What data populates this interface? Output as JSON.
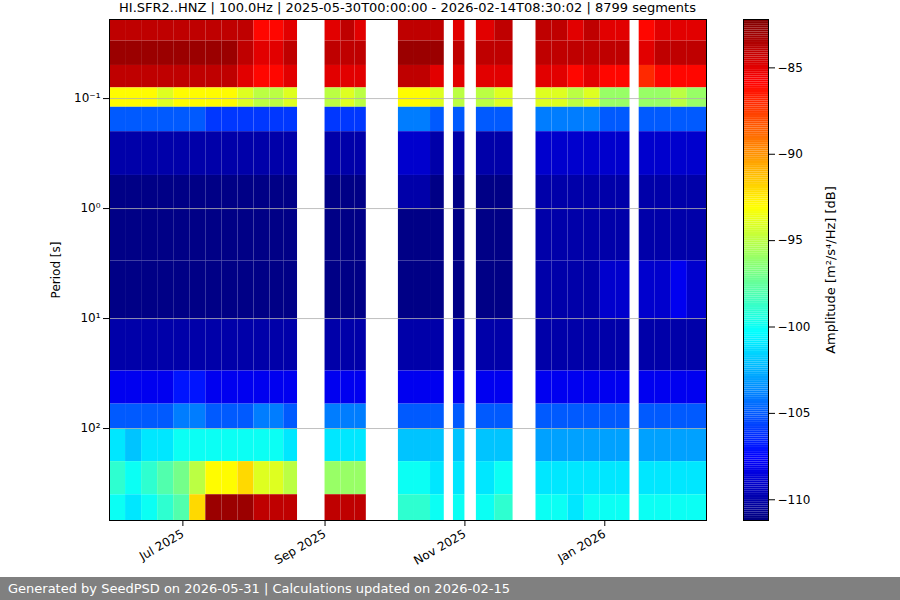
{
  "chart_data": {
    "type": "heatmap",
    "title": "HI.SFR2..HNZ | 100.0Hz | 2025-05-30T00:00:00 - 2026-02-14T08:30:02 | 8799 segments",
    "caption": "Generated by SeedPSD on 2026-05-31 | Calculations updated on 2026-02-15",
    "y_label": "Period [s]",
    "log": "y",
    "grid": "y",
    "xlim": [
      "2025-05-30",
      "2026-02-14T08:30:02"
    ],
    "xticks": [
      {
        "value": "2025-07-01",
        "label": "Jul 2025"
      },
      {
        "value": "2025-09-01",
        "label": "Sep 2025"
      },
      {
        "value": "2025-11-01",
        "label": "Nov 2025"
      },
      {
        "value": "2026-01-01",
        "label": "Jan 2026"
      }
    ],
    "ylim": [
      686,
      0.0191
    ],
    "yticks": [
      {
        "value": 0.1,
        "label": "10⁻¹"
      },
      {
        "value": 1,
        "label": "10⁰"
      },
      {
        "value": 10,
        "label": "10¹"
      },
      {
        "value": 100,
        "label": "10²"
      }
    ],
    "time_bins": [
      "2025-05-30",
      "2025-06-06",
      "2025-06-13",
      "2025-06-20",
      "2025-06-27",
      "2025-07-04",
      "2025-07-11",
      "2025-07-18",
      "2025-07-25",
      "2025-08-01",
      "2025-08-08",
      "2025-08-14",
      "2025-08-20",
      "2025-09-01",
      "2025-09-08",
      "2025-09-14",
      "2025-09-19",
      "2025-10-03",
      "2025-10-10",
      "2025-10-17",
      "2025-10-23",
      "2025-10-27",
      "2025-11-01",
      "2025-11-06",
      "2025-11-14",
      "2025-11-22",
      "2025-12-02",
      "2025-12-09",
      "2025-12-16",
      "2025-12-23",
      "2025-12-30",
      "2026-01-06",
      "2026-01-12",
      "2026-01-16",
      "2026-01-23",
      "2026-01-30",
      "2026-02-06",
      "2026-02-14T08:30:02"
    ],
    "period_bins": [
      0.0191,
      0.03,
      0.05,
      0.08,
      0.12,
      0.2,
      0.5,
      1,
      3,
      10,
      30,
      60,
      100,
      200,
      400,
      686
    ],
    "cells": [
      [
        -84,
        -83,
        -84,
        -93,
        -105,
        -110,
        -111,
        -111,
        -111,
        -110,
        -108,
        -105,
        -101,
        -99,
        -100
      ],
      [
        -84,
        -83,
        -84,
        -93,
        -105,
        -110,
        -111,
        -111,
        -111,
        -110,
        -108,
        -105,
        -102,
        -100,
        -101
      ],
      [
        -84,
        -83,
        -84,
        -93,
        -105,
        -110,
        -111,
        -111,
        -111,
        -110,
        -108,
        -105,
        -101,
        -99,
        -100
      ],
      [
        -84,
        -83,
        -84,
        -94,
        -105,
        -110,
        -111,
        -111,
        -111,
        -110,
        -108,
        -105,
        -101,
        -98,
        -99
      ],
      [
        -84,
        -83,
        -84,
        -93,
        -105,
        -110,
        -111,
        -111,
        -111,
        -110,
        -107,
        -104,
        -100,
        -97,
        -98
      ],
      [
        -84,
        -83,
        -84,
        -93,
        -105,
        -110,
        -111,
        -111,
        -111,
        -110,
        -107,
        -104,
        -100,
        -95,
        -92
      ],
      [
        -84,
        -83,
        -84,
        -93,
        -106,
        -110,
        -111,
        -111,
        -111,
        -110,
        -108,
        -105,
        -100,
        -93,
        -83
      ],
      [
        -84,
        -83,
        -84,
        -93,
        -106,
        -110,
        -111,
        -111,
        -111,
        -110,
        -108,
        -105,
        -100,
        -93,
        -83
      ],
      [
        -84,
        -84,
        -85,
        -94,
        -106,
        -110,
        -111,
        -111,
        -111,
        -110,
        -108,
        -105,
        -100,
        -92,
        -83
      ],
      [
        -86,
        -85,
        -86,
        -95,
        -106,
        -110,
        -111,
        -111,
        -111,
        -110,
        -108,
        -104,
        -100,
        -94,
        -84
      ],
      [
        -86,
        -85,
        -86,
        -95,
        -106,
        -110,
        -111,
        -111,
        -111,
        -110,
        -108,
        -104,
        -100,
        -94,
        -84
      ],
      [
        -85,
        -84,
        -85,
        -94,
        -106,
        -110,
        -111,
        -111,
        -111,
        -110,
        -108,
        -105,
        -101,
        -95,
        -84
      ],
      null,
      [
        -85,
        -84,
        -85,
        -95,
        -106,
        -110,
        -111,
        -111,
        -111,
        -110,
        -108,
        -104,
        -101,
        -96,
        -84
      ],
      [
        -84,
        -84,
        -85,
        -94,
        -106,
        -110,
        -111,
        -111,
        -111,
        -110,
        -108,
        -104,
        -101,
        -96,
        -84
      ],
      [
        -85,
        -84,
        -85,
        -95,
        -106,
        -110,
        -111,
        -111,
        -111,
        -110,
        -108,
        -104,
        -101,
        -96,
        -84
      ],
      null,
      [
        -84,
        -83,
        -84,
        -93,
        -104,
        -109,
        -110,
        -111,
        -111,
        -110,
        -108,
        -105,
        -102,
        -100,
        -99
      ],
      [
        -84,
        -83,
        -84,
        -93,
        -104,
        -109,
        -110,
        -111,
        -111,
        -110,
        -108,
        -105,
        -102,
        -100,
        -99
      ],
      [
        -84,
        -83,
        -85,
        -94,
        -105,
        -110,
        -111,
        -111,
        -111,
        -110,
        -108,
        -105,
        -102,
        -101,
        -100
      ],
      null,
      [
        -85,
        -84,
        -85,
        -95,
        -105,
        -110,
        -111,
        -111,
        -111,
        -110,
        -108,
        -105,
        -102,
        -101,
        -100
      ],
      null,
      [
        -85,
        -84,
        -85,
        -95,
        -105,
        -110,
        -111,
        -111,
        -111,
        -110,
        -108,
        -105,
        -102,
        -101,
        -100
      ],
      [
        -84,
        -84,
        -85,
        -94,
        -105,
        -110,
        -111,
        -111,
        -111,
        -110,
        -108,
        -105,
        -102,
        -100,
        -99
      ],
      null,
      [
        -84,
        -84,
        -85,
        -94,
        -104,
        -109,
        -110,
        -110,
        -110,
        -110,
        -108,
        -105,
        -103,
        -101,
        -100
      ],
      [
        -84,
        -84,
        -85,
        -94,
        -104,
        -109,
        -110,
        -110,
        -110,
        -110,
        -108,
        -105,
        -103,
        -101,
        -100
      ],
      [
        -85,
        -84,
        -86,
        -95,
        -104,
        -109,
        -110,
        -110,
        -110,
        -110,
        -108,
        -105,
        -103,
        -101,
        -101
      ],
      [
        -84,
        -84,
        -85,
        -94,
        -104,
        -109,
        -110,
        -110,
        -110,
        -110,
        -108,
        -105,
        -103,
        -101,
        -100
      ],
      [
        -85,
        -84,
        -86,
        -96,
        -105,
        -109,
        -110,
        -110,
        -109,
        -110,
        -108,
        -105,
        -103,
        -101,
        -100
      ],
      [
        -85,
        -84,
        -86,
        -96,
        -105,
        -109,
        -110,
        -110,
        -109,
        -110,
        -108,
        -105,
        -103,
        -101,
        -100
      ],
      null,
      [
        -86,
        -85,
        -87,
        -96,
        -105,
        -109,
        -110,
        -110,
        -109,
        -110,
        -108,
        -105,
        -103,
        -101,
        -100
      ],
      [
        -85,
        -84,
        -86,
        -96,
        -105,
        -109,
        -110,
        -110,
        -109,
        -110,
        -108,
        -105,
        -103,
        -101,
        -100
      ],
      [
        -85,
        -84,
        -86,
        -95,
        -105,
        -109,
        -110,
        -110,
        -108,
        -110,
        -108,
        -105,
        -103,
        -101,
        -100
      ],
      [
        -85,
        -84,
        -86,
        -96,
        -105,
        -109,
        -110,
        -110,
        -109,
        -110,
        -108,
        -105,
        -103,
        -101,
        -100
      ]
    ],
    "colorbar": {
      "label": "Amplitude [m²/s⁴/Hz] [dB]",
      "lim": [
        -111.2,
        -82.2
      ],
      "ticks": [
        {
          "value": -85,
          "label": "−85"
        },
        {
          "value": -90,
          "label": "−90"
        },
        {
          "value": -95,
          "label": "−95"
        },
        {
          "value": -100,
          "label": "−100"
        },
        {
          "value": -105,
          "label": "−105"
        },
        {
          "value": -110,
          "label": "−110"
        }
      ]
    }
  }
}
